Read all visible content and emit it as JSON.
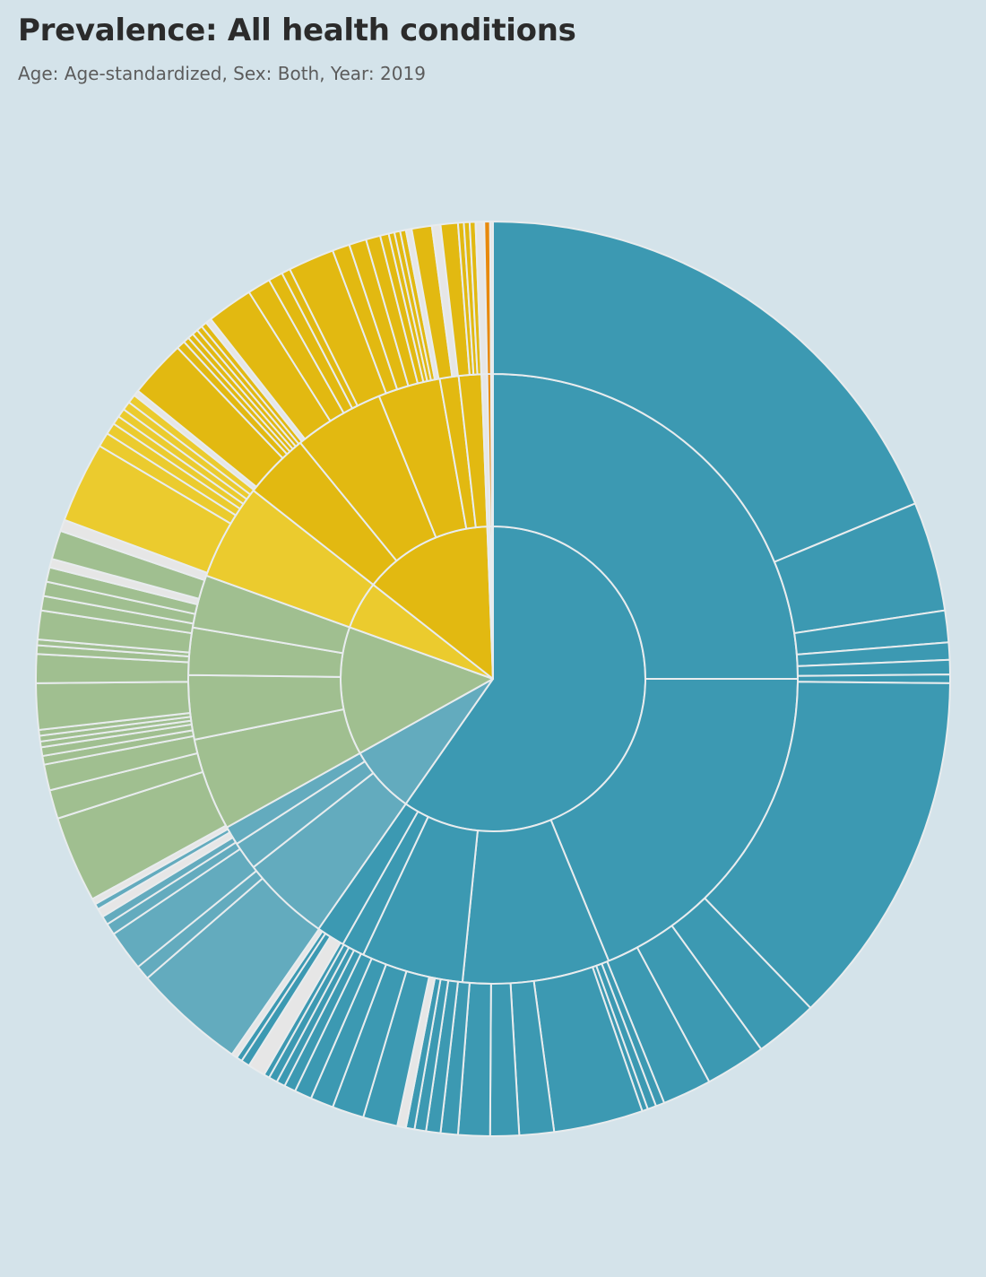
{
  "title": "Prevalence: All health conditions",
  "subtitle": "Age: Age-standardized, Sex: Both, Year: 2019",
  "colors": {
    "background": "#d4e3ea",
    "separator": "#e8ecee",
    "teal": "#3c99b2",
    "light_teal": "#63abbe",
    "green": "#a0bf90",
    "gold": "#e2b911",
    "yellow": "#ebcb2e",
    "orange": "#e8890c",
    "gap": "#e6e6e6"
  },
  "chart_data": {
    "type": "sunburst",
    "title": "Prevalence: All health conditions",
    "subtitle": "Age: Age-standardized, Sex: Both, Year: 2019",
    "unit": "% of total prevalence (shares read off ring angles)",
    "rings": [
      {
        "level": 1,
        "segments": [
          {
            "share": 59.7,
            "color": "#3c99b2"
          },
          {
            "share": 7.2,
            "color": "#63abbe"
          },
          {
            "share": 13.6,
            "color": "#a0bf90"
          },
          {
            "share": 5.1,
            "color": "#ebcb2e"
          },
          {
            "share": 13.8,
            "color": "#e2b911"
          },
          {
            "share": 0.3,
            "color": "#e6e6e6"
          },
          {
            "share": 0.2,
            "color": "#e8890c"
          },
          {
            "share": 0.1,
            "color": "#e6e6e6"
          }
        ]
      },
      {
        "level": 2,
        "segments": [
          {
            "share": 25.0,
            "color": "#3c99b2"
          },
          {
            "share": 18.8,
            "color": "#3c99b2"
          },
          {
            "share": 7.8,
            "color": "#3c99b2"
          },
          {
            "share": 5.4,
            "color": "#3c99b2"
          },
          {
            "share": 1.2,
            "color": "#3c99b2"
          },
          {
            "share": 1.5,
            "color": "#3c99b2"
          },
          {
            "share": 4.7,
            "color": "#63abbe"
          },
          {
            "share": 1.5,
            "color": "#63abbe"
          },
          {
            "share": 1.0,
            "color": "#63abbe"
          },
          {
            "share": 4.9,
            "color": "#a0bf90"
          },
          {
            "share": 3.4,
            "color": "#a0bf90"
          },
          {
            "share": 2.5,
            "color": "#a0bf90"
          },
          {
            "share": 2.8,
            "color": "#a0bf90"
          },
          {
            "share": 5.1,
            "color": "#ebcb2e"
          },
          {
            "share": 3.5,
            "color": "#e2b911"
          },
          {
            "share": 4.8,
            "color": "#e2b911"
          },
          {
            "share": 3.3,
            "color": "#e2b911"
          },
          {
            "share": 1.0,
            "color": "#e2b911"
          },
          {
            "share": 1.2,
            "color": "#e2b911"
          },
          {
            "share": 0.3,
            "color": "#e6e6e6"
          },
          {
            "share": 0.2,
            "color": "#e8890c"
          },
          {
            "share": 0.1,
            "color": "#e6e6e6"
          }
        ]
      },
      {
        "level": 3,
        "segments": [
          {
            "share": 18.4,
            "color": "#3c99b2"
          },
          {
            "share": 3.8,
            "color": "#3c99b2"
          },
          {
            "share": 1.1,
            "color": "#3c99b2"
          },
          {
            "share": 0.6,
            "color": "#3c99b2"
          },
          {
            "share": 0.5,
            "color": "#3c99b2"
          },
          {
            "share": 0.3,
            "color": "#3c99b2"
          },
          {
            "share": 12.4,
            "color": "#3c99b2"
          },
          {
            "share": 2.2,
            "color": "#3c99b2"
          },
          {
            "share": 2.1,
            "color": "#3c99b2"
          },
          {
            "share": 1.7,
            "color": "#3c99b2"
          },
          {
            "share": 0.3,
            "color": "#3c99b2"
          },
          {
            "share": 0.3,
            "color": "#3c99b2"
          },
          {
            "share": 0.2,
            "color": "#3c99b2"
          },
          {
            "share": 3.1,
            "color": "#3c99b2"
          },
          {
            "share": 1.2,
            "color": "#3c99b2"
          },
          {
            "share": 1.0,
            "color": "#3c99b2"
          },
          {
            "share": 1.1,
            "color": "#3c99b2"
          },
          {
            "share": 0.6,
            "color": "#3c99b2"
          },
          {
            "share": 0.5,
            "color": "#3c99b2"
          },
          {
            "share": 0.4,
            "color": "#3c99b2"
          },
          {
            "share": 0.3,
            "color": "#3c99b2"
          },
          {
            "share": 0.3,
            "color": "#e6e6e6"
          },
          {
            "share": 1.2,
            "color": "#3c99b2"
          },
          {
            "share": 1.1,
            "color": "#3c99b2"
          },
          {
            "share": 0.8,
            "color": "#3c99b2"
          },
          {
            "share": 0.6,
            "color": "#3c99b2"
          },
          {
            "share": 0.4,
            "color": "#3c99b2"
          },
          {
            "share": 0.3,
            "color": "#3c99b2"
          },
          {
            "share": 0.3,
            "color": "#3c99b2"
          },
          {
            "share": 0.2,
            "color": "#3c99b2"
          },
          {
            "share": 0.6,
            "color": "#e6e6e6"
          },
          {
            "share": 0.3,
            "color": "#3c99b2"
          },
          {
            "share": 0.2,
            "color": "#3c99b2"
          },
          {
            "share": 0.2,
            "color": "#e6e6e6"
          },
          {
            "share": 3.9,
            "color": "#63abbe"
          },
          {
            "share": 0.5,
            "color": "#63abbe"
          },
          {
            "share": 1.4,
            "color": "#63abbe"
          },
          {
            "share": 0.4,
            "color": "#63abbe"
          },
          {
            "share": 0.3,
            "color": "#63abbe"
          },
          {
            "share": 0.3,
            "color": "#e6e6e6"
          },
          {
            "share": 0.2,
            "color": "#63abbe"
          },
          {
            "share": 0.2,
            "color": "#e6e6e6"
          },
          {
            "share": 3.0,
            "color": "#a0bf90"
          },
          {
            "share": 1.0,
            "color": "#a0bf90"
          },
          {
            "share": 0.9,
            "color": "#a0bf90"
          },
          {
            "share": 0.3,
            "color": "#a0bf90"
          },
          {
            "share": 0.3,
            "color": "#a0bf90"
          },
          {
            "share": 0.2,
            "color": "#a0bf90"
          },
          {
            "share": 0.2,
            "color": "#a0bf90"
          },
          {
            "share": 0.2,
            "color": "#a0bf90"
          },
          {
            "share": 1.6,
            "color": "#a0bf90"
          },
          {
            "share": 1.0,
            "color": "#a0bf90"
          },
          {
            "share": 0.3,
            "color": "#a0bf90"
          },
          {
            "share": 0.2,
            "color": "#a0bf90"
          },
          {
            "share": 1.0,
            "color": "#a0bf90"
          },
          {
            "share": 0.5,
            "color": "#a0bf90"
          },
          {
            "share": 0.5,
            "color": "#a0bf90"
          },
          {
            "share": 0.5,
            "color": "#a0bf90"
          },
          {
            "share": 0.3,
            "color": "#e6e6e6"
          },
          {
            "share": 1.0,
            "color": "#a0bf90"
          },
          {
            "share": 0.4,
            "color": "#e6e6e6"
          },
          {
            "share": 2.8,
            "color": "#ebcb2e"
          },
          {
            "share": 0.5,
            "color": "#ebcb2e"
          },
          {
            "share": 0.4,
            "color": "#ebcb2e"
          },
          {
            "share": 0.3,
            "color": "#ebcb2e"
          },
          {
            "share": 0.3,
            "color": "#ebcb2e"
          },
          {
            "share": 0.3,
            "color": "#ebcb2e"
          },
          {
            "share": 0.3,
            "color": "#ebcb2e"
          },
          {
            "share": 0.2,
            "color": "#e6e6e6"
          },
          {
            "share": 2.0,
            "color": "#e2b911"
          },
          {
            "share": 0.3,
            "color": "#e2b911"
          },
          {
            "share": 0.2,
            "color": "#e2b911"
          },
          {
            "share": 0.2,
            "color": "#e2b911"
          },
          {
            "share": 0.2,
            "color": "#e2b911"
          },
          {
            "share": 0.2,
            "color": "#e2b911"
          },
          {
            "share": 0.2,
            "color": "#e2b911"
          },
          {
            "share": 0.2,
            "color": "#e6e6e6"
          },
          {
            "share": 1.6,
            "color": "#e2b911"
          },
          {
            "share": 0.8,
            "color": "#e2b911"
          },
          {
            "share": 0.5,
            "color": "#e2b911"
          },
          {
            "share": 0.3,
            "color": "#e2b911"
          },
          {
            "share": 1.6,
            "color": "#e2b911"
          },
          {
            "share": 0.6,
            "color": "#e2b911"
          },
          {
            "share": 0.6,
            "color": "#e2b911"
          },
          {
            "share": 0.5,
            "color": "#e2b911"
          },
          {
            "share": 0.3,
            "color": "#e2b911"
          },
          {
            "share": 0.2,
            "color": "#e2b911"
          },
          {
            "share": 0.2,
            "color": "#e2b911"
          },
          {
            "share": 0.2,
            "color": "#e2b911"
          },
          {
            "share": 0.2,
            "color": "#e6e6e6"
          },
          {
            "share": 0.7,
            "color": "#e2b911"
          },
          {
            "share": 0.3,
            "color": "#e6e6e6"
          },
          {
            "share": 0.6,
            "color": "#e2b911"
          },
          {
            "share": 0.2,
            "color": "#e2b911"
          },
          {
            "share": 0.2,
            "color": "#e2b911"
          },
          {
            "share": 0.2,
            "color": "#e2b911"
          },
          {
            "share": 0.3,
            "color": "#e6e6e6"
          },
          {
            "share": 0.2,
            "color": "#e8890c"
          },
          {
            "share": 0.1,
            "color": "#e6e6e6"
          }
        ]
      }
    ],
    "legend": "none",
    "grid": false
  }
}
